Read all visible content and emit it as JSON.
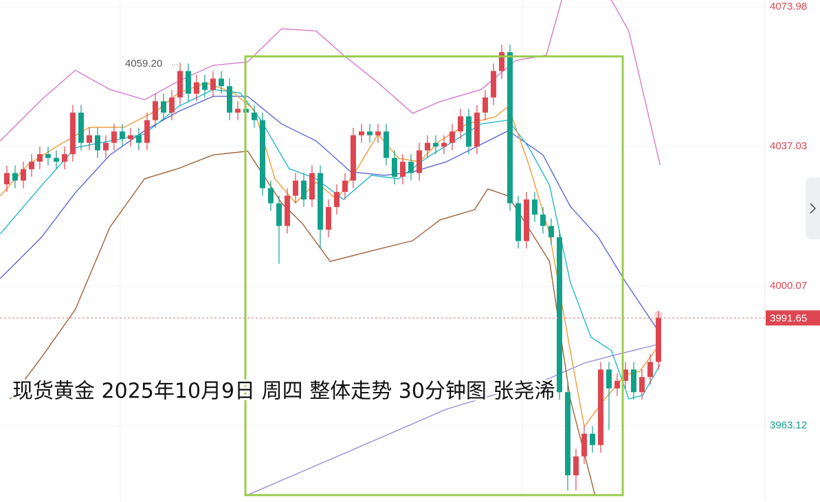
{
  "chart_data": {
    "type": "candlestick",
    "title": "现货黄金 2025年10月9日 周四 整体走势 30分钟图 张尧浠",
    "high_label": "4059.20",
    "high_label_index": 21,
    "last_price": 3991.65,
    "up_color": "#dd4650",
    "down_color": "#12a08a",
    "xlim": [
      -0.83,
      91.92
    ],
    "ylim": [
      3943.66,
      4075.8
    ],
    "yticks": [
      4073.98,
      4037.03,
      4000.07,
      3963.12
    ],
    "grid": true,
    "open": [
      4027,
      4030,
      4028,
      4031,
      4033,
      4035,
      4034,
      4033,
      4035,
      4046,
      4038,
      4040,
      4036,
      4038,
      4041,
      4039,
      4040,
      4038,
      4044,
      4049,
      4046,
      4050,
      4057,
      4051,
      4054,
      4052,
      4055,
      4053,
      4046,
      4047,
      4046,
      4044,
      4026,
      4022,
      4016,
      4024,
      4028,
      4023,
      4030,
      4015,
      4021,
      4025,
      4028,
      4040,
      4041,
      4040,
      4041,
      4034,
      4029,
      4033,
      4030,
      4036,
      4038,
      4037,
      4038,
      4041,
      4045,
      4037,
      4046,
      4050,
      4057,
      4062,
      4022,
      4012,
      4023,
      4019,
      4016,
      4013,
      3972,
      3950,
      3955,
      3961,
      3958,
      3978,
      3973,
      3975,
      3978,
      3972,
      3976,
      3980
    ],
    "high": [
      4032,
      4032,
      4033,
      4035,
      4037,
      4037,
      4036,
      4037,
      4048,
      4048,
      4042,
      4042,
      4040,
      4043,
      4043,
      4042,
      4042,
      4046,
      4051,
      4051,
      4052,
      4059.2,
      4059,
      4056,
      4056,
      4057,
      4057,
      4055,
      4049,
      4049,
      4048,
      4046,
      4028,
      4024,
      4026,
      4030,
      4030,
      4032,
      4032,
      4023,
      4027,
      4030,
      4042,
      4043,
      4043,
      4043,
      4043,
      4036,
      4035,
      4035,
      4038,
      4040,
      4040,
      4040,
      4043,
      4047,
      4047,
      4048,
      4052,
      4059,
      4064,
      4064,
      4024,
      4025,
      4025,
      4021,
      4018,
      4015,
      3974,
      3957,
      3963,
      3963,
      3980,
      3980,
      3977,
      3980,
      3980,
      3978,
      3982,
      3993.5
    ],
    "low": [
      4025,
      4026,
      4026,
      4029,
      4031,
      4032,
      4031,
      4031,
      4033,
      4036,
      4036,
      4034,
      4034,
      4036,
      4037,
      4037,
      4036,
      4036,
      4042,
      4044,
      4044,
      4048,
      4049,
      4049,
      4050,
      4050,
      4051,
      4044,
      4044,
      4044,
      4042,
      4024,
      4020,
      4006,
      4014,
      4022,
      4021,
      4021,
      4010,
      4013,
      4019,
      4023,
      4026,
      4038,
      4038,
      4038,
      4032,
      4027,
      4027,
      4028,
      4028,
      4034,
      4035,
      4035,
      4036,
      4039,
      4035,
      4035,
      4044,
      4048,
      4055,
      4020,
      4010,
      4010,
      4017,
      4014,
      4011,
      3970,
      3946,
      3946,
      3953,
      3956,
      3956,
      3962,
      3971,
      3973,
      3970,
      3970,
      3974,
      3978
    ],
    "close": [
      4030,
      4028,
      4031,
      4033,
      4035,
      4034,
      4033,
      4035,
      4046,
      4038,
      4040,
      4036,
      4038,
      4041,
      4039,
      4040,
      4038,
      4044,
      4049,
      4046,
      4050,
      4057,
      4051,
      4054,
      4052,
      4055,
      4053,
      4046,
      4047,
      4046,
      4044,
      4026,
      4022,
      4016,
      4024,
      4028,
      4023,
      4030,
      4015,
      4021,
      4025,
      4028,
      4040,
      4041,
      4040,
      4041,
      4034,
      4029,
      4033,
      4030,
      4036,
      4038,
      4037,
      4038,
      4041,
      4045,
      4037,
      4046,
      4050,
      4057,
      4062,
      4022,
      4012,
      4023,
      4019,
      4016,
      4013,
      3972,
      3950,
      3955,
      3961,
      3958,
      3978,
      3973,
      3975,
      3978,
      3972,
      3976,
      3980,
      3991.65
    ],
    "lines": [
      {
        "color": "#9b8ad8",
        "x": [
          29.2,
          40.8,
          53.3,
          65.8,
          70,
          74.2,
          79.2
        ],
        "values": [
          3944.8,
          3955.7,
          3967.5,
          3975.7,
          3979.7,
          3982.1,
          3984.8
        ]
      },
      {
        "color": "#a0623a",
        "x": [
          0.4,
          4.2,
          8.3,
          12.5,
          16.7,
          20.8,
          25,
          29.2,
          33.3,
          35.8,
          39.2,
          44.2,
          49.2,
          52.5,
          56.7,
          58.3,
          60.8,
          65.8,
          68.3,
          71.3
        ],
        "values": [
          3970.2,
          3981.2,
          3993.9,
          4015.7,
          4028.5,
          4031.2,
          4034.8,
          4035.8,
          4022.1,
          4016.7,
          4006.6,
          4009.4,
          4012.1,
          4017.6,
          4020.3,
          4025.8,
          4023.9,
          4006.6,
          3970.2,
          3944.8
        ]
      },
      {
        "color": "#d77ac8",
        "x": [
          -0.8,
          4.2,
          8.3,
          12.5,
          16.7,
          20.8,
          25,
          29.2,
          33.3,
          37.5,
          40.8,
          45,
          49.2,
          52.5,
          57.5,
          61.7,
          65.4,
          67.5,
          73.3,
          75.4,
          79.2
        ],
        "values": [
          4038.5,
          4049.4,
          4057.2,
          4052.1,
          4049.4,
          4054.3,
          4058.5,
          4059.4,
          4068.2,
          4067.6,
          4061.2,
          4053.9,
          4045.8,
          4048.9,
          4052.1,
          4059.8,
          4061.2,
          4077.6,
          4075.8,
          4067.6,
          4032.1
        ]
      },
      {
        "color": "#5b67d6",
        "x": [
          -0.8,
          4.2,
          8.3,
          12.5,
          16.7,
          20.8,
          25,
          29.2,
          33.3,
          37.5,
          41.7,
          45.8,
          49.2,
          53.3,
          57.5,
          60.8,
          65,
          68.3,
          71.7,
          75,
          79.2
        ],
        "values": [
          4002.1,
          4013.0,
          4024.8,
          4034.8,
          4041.2,
          4046.3,
          4050.3,
          4050.3,
          4043.0,
          4038.5,
          4030.3,
          4029.4,
          4030.3,
          4033.0,
          4037.6,
          4041.2,
          4034.8,
          4021.2,
          4013.0,
          4001.2,
          3987.5
        ]
      },
      {
        "color": "#22b9c9",
        "x": [
          -0.8,
          4.2,
          8.3,
          12.5,
          16.7,
          20.8,
          25,
          28.3,
          30.8,
          34.2,
          37.5,
          40.8,
          44.2,
          47.5,
          50.8,
          54.2,
          57.5,
          60.8,
          63.3,
          65.8,
          68.3,
          70.8,
          73.3,
          75.4,
          77.1,
          79.2
        ],
        "values": [
          4013.9,
          4026.7,
          4036.7,
          4038.5,
          4040.3,
          4047.6,
          4052.1,
          4051.2,
          4044.0,
          4031.2,
          4028.5,
          4023.0,
          4029.4,
          4028.5,
          4033.9,
          4038.5,
          4043.0,
          4044.0,
          4036.7,
          4026.7,
          4001.2,
          3986.6,
          3983.0,
          3970.2,
          3971.2,
          3979.3
        ]
      },
      {
        "color": "#f29a38",
        "x": [
          -0.8,
          2.5,
          5.8,
          10,
          14.2,
          18.3,
          20.8,
          24.2,
          27.5,
          30,
          32.5,
          35,
          37.5,
          40,
          42.5,
          45,
          47.5,
          50,
          52.5,
          55.8,
          59.2,
          60.8,
          63.3,
          65.8,
          68.3,
          70,
          72.5,
          75,
          76.7,
          79.2
        ],
        "values": [
          4023.9,
          4032.1,
          4036.7,
          4042.1,
          4042.1,
          4046.7,
          4051.2,
          4053.9,
          4051.2,
          4046.7,
          4028.5,
          4022.1,
          4027.6,
          4023.0,
          4031.2,
          4040.3,
          4033.9,
          4033.0,
          4038.5,
          4043.0,
          4044.9,
          4047.6,
          4032.1,
          4013.9,
          3983.0,
          3962.9,
          3970.2,
          3976.6,
          3977.5,
          3984.8
        ]
      }
    ]
  }
}
